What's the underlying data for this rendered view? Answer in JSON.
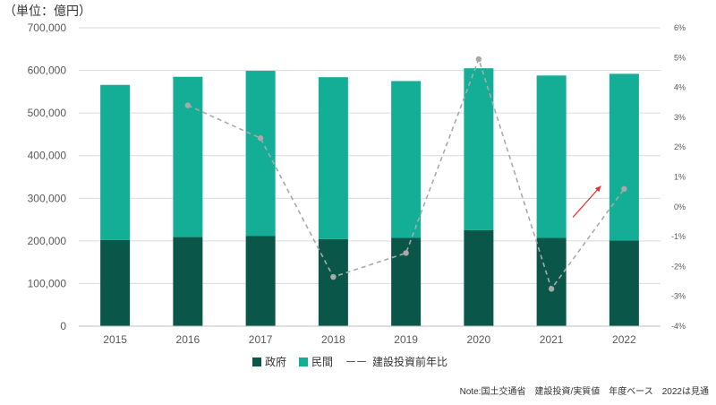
{
  "unit_label": "（単位：億円）",
  "note": "Note:国土交通省　建設投資/実質値　年度ベース　2022は見通",
  "colors": {
    "government": "#0a5649",
    "private": "#14ad96",
    "yoy_line": "#a9a9a9",
    "arrow": "#e0302c",
    "grid": "#d9d9d9",
    "axis_text": "#595959"
  },
  "chart_data": {
    "type": "bar",
    "stacked": true,
    "categories": [
      "2015",
      "2016",
      "2017",
      "2018",
      "2019",
      "2020",
      "2021",
      "2022"
    ],
    "series": [
      {
        "name": "政府",
        "values": [
          202000,
          209000,
          212000,
          204000,
          207000,
          225000,
          207000,
          201000
        ]
      },
      {
        "name": "民間",
        "values": [
          364000,
          376000,
          387000,
          380000,
          368000,
          380000,
          381000,
          391000
        ]
      }
    ],
    "line_series": {
      "name": "建設投資前年比",
      "style": "dashed",
      "axis": "right",
      "values": [
        null,
        3.4,
        2.3,
        -2.35,
        -1.55,
        4.95,
        -2.75,
        0.6
      ]
    },
    "ylim": [
      0,
      700000
    ],
    "y_ticks": [
      "0",
      "100,000",
      "200,000",
      "300,000",
      "400,000",
      "500,000",
      "600,000",
      "700,000"
    ],
    "y2lim": [
      -4,
      6
    ],
    "y2_ticks": [
      "-4%",
      "-3%",
      "-2%",
      "-1%",
      "0%",
      "1%",
      "2%",
      "3%",
      "4%",
      "5%",
      "6%"
    ],
    "grid": true,
    "legend": {
      "position": "bottom",
      "items": [
        {
          "label": "政府",
          "type": "square"
        },
        {
          "label": "民間",
          "type": "square"
        },
        {
          "label": "建設投資前年比",
          "type": "dash",
          "symbol": "ーー"
        }
      ]
    },
    "annotation": {
      "type": "arrow",
      "direction": "up-right",
      "between": [
        "2021",
        "2022"
      ]
    }
  }
}
